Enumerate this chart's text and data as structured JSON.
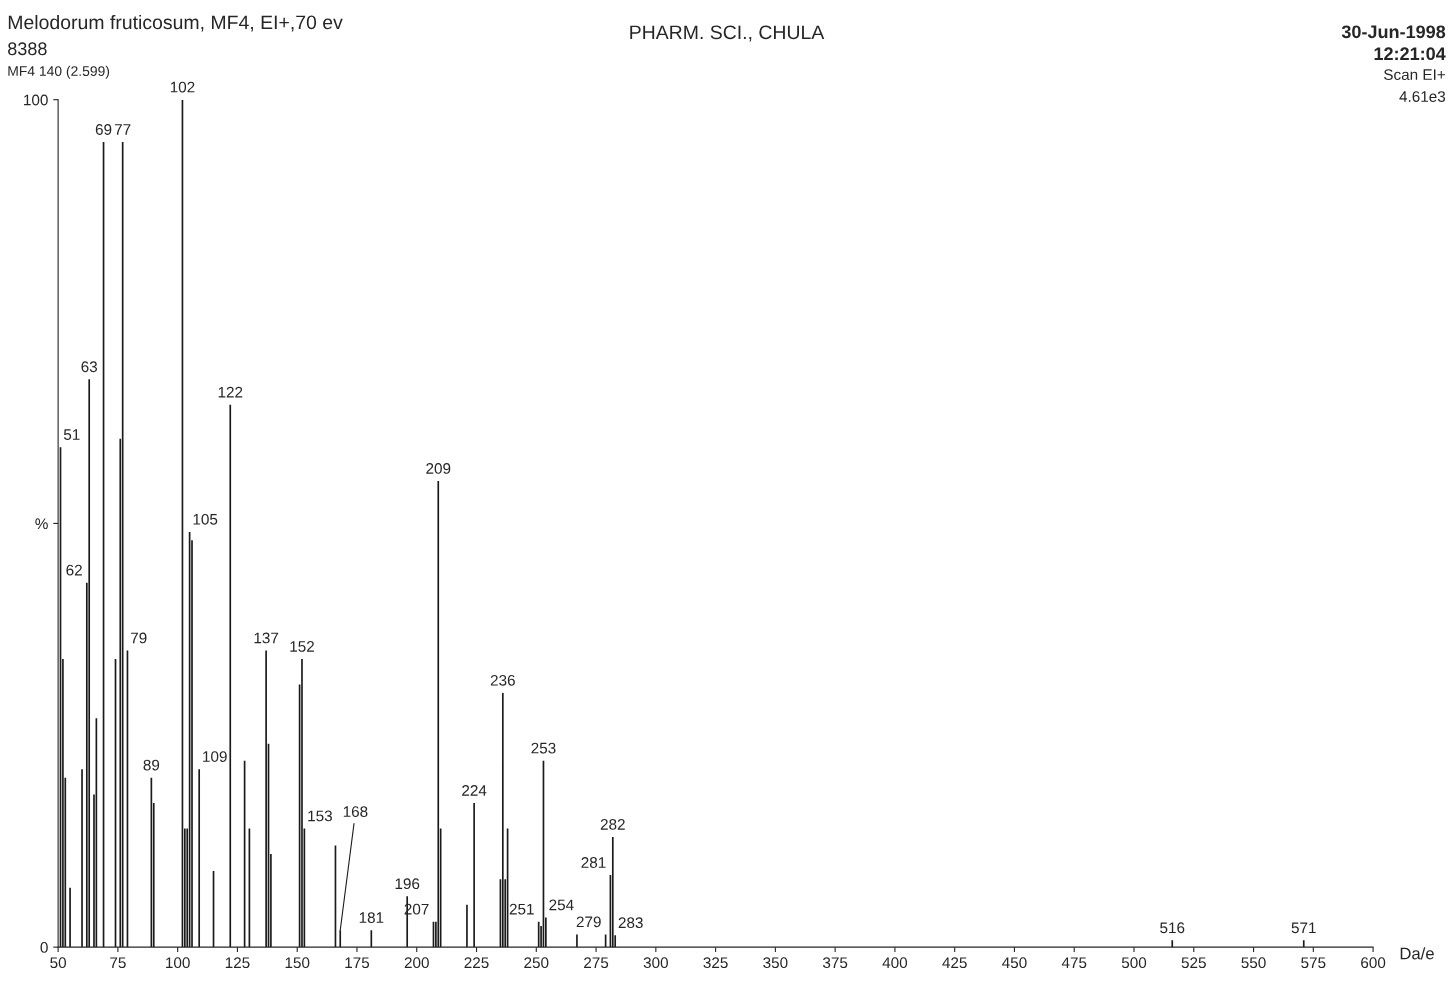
{
  "chart_data": {
    "type": "bar",
    "title": "Melodorum fruticosum, MF4, EI+,70 ev",
    "subtitle": "PHARM. SCI., CHULA",
    "xlabel": "Da/e",
    "x": [
      51,
      52,
      53,
      55,
      60,
      62,
      63,
      65,
      66,
      69,
      74,
      76,
      77,
      79,
      89,
      90,
      102,
      103,
      104,
      105,
      106,
      109,
      115,
      122,
      128,
      130,
      137,
      138,
      139,
      151,
      152,
      153,
      166,
      168,
      181,
      196,
      207,
      208,
      209,
      210,
      221,
      224,
      235,
      236,
      237,
      238,
      251,
      252,
      253,
      254,
      267,
      279,
      281,
      282,
      283,
      516,
      571
    ],
    "values": [
      59,
      34,
      20,
      7,
      21,
      43,
      67,
      18,
      27,
      95,
      34,
      60,
      95,
      35,
      20,
      17,
      100,
      14,
      14,
      49,
      48,
      21,
      9,
      64,
      22,
      14,
      35,
      24,
      11,
      31,
      34,
      14,
      12,
      2,
      2,
      6,
      3,
      3,
      55,
      14,
      5,
      17,
      8,
      30,
      8,
      14,
      3,
      2.5,
      22,
      3.5,
      1.5,
      1.5,
      8.5,
      13,
      1.4,
      0.8,
      0.8
    ],
    "color": "#1a1a1a",
    "xlim": [
      50,
      600
    ],
    "xticks": [
      50,
      75,
      100,
      125,
      150,
      175,
      200,
      225,
      250,
      275,
      300,
      325,
      350,
      375,
      400,
      425,
      450,
      475,
      500,
      525,
      550,
      575,
      600
    ],
    "ylim": [
      0,
      100
    ],
    "yticks": [
      0,
      {
        "value": 50,
        "label": "%"
      },
      100
    ],
    "grid": false,
    "annotations": [
      "8388",
      "MF4 140 (2.599)",
      "30-Jun-1998",
      "12:21:04",
      "Scan EI+",
      "4.61e3",
      {
        "text": "51",
        "x": 51,
        "y": 59
      },
      {
        "text": "62",
        "x": 62,
        "y": 43
      },
      {
        "text": "63",
        "x": 63,
        "y": 67
      },
      {
        "text": "69",
        "x": 69,
        "y": 95
      },
      {
        "text": "77",
        "x": 77,
        "y": 95
      },
      {
        "text": "79",
        "x": 79,
        "y": 35
      },
      {
        "text": "89",
        "x": 89,
        "y": 20
      },
      {
        "text": "102",
        "x": 102,
        "y": 100
      },
      {
        "text": "105",
        "x": 105,
        "y": 49
      },
      {
        "text": "109",
        "x": 109,
        "y": 21
      },
      {
        "text": "122",
        "x": 122,
        "y": 64
      },
      {
        "text": "137",
        "x": 137,
        "y": 35
      },
      {
        "text": "152",
        "x": 152,
        "y": 34
      },
      {
        "text": "153",
        "x": 153,
        "y": 14
      },
      {
        "text": "168",
        "x": 168,
        "y": 2
      },
      {
        "text": "181",
        "x": 181,
        "y": 2
      },
      {
        "text": "196",
        "x": 196,
        "y": 6
      },
      {
        "text": "207",
        "x": 207,
        "y": 3
      },
      {
        "text": "209",
        "x": 209,
        "y": 55
      },
      {
        "text": "224",
        "x": 224,
        "y": 17
      },
      {
        "text": "236",
        "x": 236,
        "y": 30
      },
      {
        "text": "251",
        "x": 251,
        "y": 3
      },
      {
        "text": "253",
        "x": 253,
        "y": 22
      },
      {
        "text": "254",
        "x": 254,
        "y": 3.5
      },
      {
        "text": "279",
        "x": 279,
        "y": 1.5
      },
      {
        "text": "281",
        "x": 281,
        "y": 8.5
      },
      {
        "text": "282",
        "x": 282,
        "y": 13
      },
      {
        "text": "283",
        "x": 283,
        "y": 1.4
      },
      {
        "text": "516",
        "x": 516,
        "y": 0.8
      },
      {
        "text": "571",
        "x": 571,
        "y": 0.8
      }
    ]
  }
}
